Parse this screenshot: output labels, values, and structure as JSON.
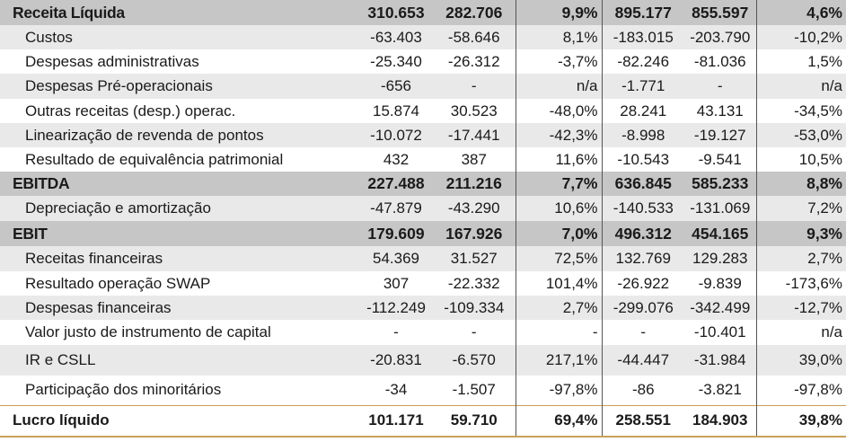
{
  "rows": [
    {
      "type": "head",
      "label": "Receita Líquida",
      "v": [
        "310.653",
        "282.706",
        "9,9%",
        "895.177",
        "855.597",
        "4,6%"
      ]
    },
    {
      "type": "even",
      "label": "Custos",
      "v": [
        "-63.403",
        "-58.646",
        "8,1%",
        "-183.015",
        "-203.790",
        "-10,2%"
      ]
    },
    {
      "type": "odd",
      "label": "Despesas administrativas",
      "v": [
        "-25.340",
        "-26.312",
        "-3,7%",
        "-82.246",
        "-81.036",
        "1,5%"
      ]
    },
    {
      "type": "even",
      "label": "Despesas Pré-operacionais",
      "v": [
        "-656",
        "-",
        "n/a",
        "-1.771",
        "-",
        "n/a"
      ]
    },
    {
      "type": "odd",
      "label": "Outras receitas (desp.) operac.",
      "v": [
        "15.874",
        "30.523",
        "-48,0%",
        "28.241",
        "43.131",
        "-34,5%"
      ]
    },
    {
      "type": "even",
      "label": "Linearização de revenda de pontos",
      "v": [
        "-10.072",
        "-17.441",
        "-42,3%",
        "-8.998",
        "-19.127",
        "-53,0%"
      ]
    },
    {
      "type": "odd",
      "label": "Resultado de equivalência patrimonial",
      "v": [
        "432",
        "387",
        "11,6%",
        "-10.543",
        "-9.541",
        "10,5%"
      ]
    },
    {
      "type": "head",
      "label": "EBITDA",
      "v": [
        "227.488",
        "211.216",
        "7,7%",
        "636.845",
        "585.233",
        "8,8%"
      ]
    },
    {
      "type": "even",
      "label": "Depreciação e amortização",
      "v": [
        "-47.879",
        "-43.290",
        "10,6%",
        "-140.533",
        "-131.069",
        "7,2%"
      ]
    },
    {
      "type": "head",
      "label": "EBIT",
      "v": [
        "179.609",
        "167.926",
        "7,0%",
        "496.312",
        "454.165",
        "9,3%"
      ]
    },
    {
      "type": "even",
      "label": "Receitas financeiras",
      "v": [
        "54.369",
        "31.527",
        "72,5%",
        "132.769",
        "129.283",
        "2,7%"
      ]
    },
    {
      "type": "odd",
      "label": "Resultado operação SWAP",
      "v": [
        "307",
        "-22.332",
        "101,4%",
        "-26.922",
        "-9.839",
        "-173,6%"
      ]
    },
    {
      "type": "even",
      "label": "Despesas financeiras",
      "v": [
        "-112.249",
        "-109.334",
        "2,7%",
        "-299.076",
        "-342.499",
        "-12,7%"
      ]
    },
    {
      "type": "odd",
      "label": "Valor justo de instrumento de capital",
      "v": [
        "-",
        "-",
        "-",
        "-",
        "-10.401",
        "n/a"
      ]
    },
    {
      "type": "even",
      "label": "IR e CSLL",
      "v": [
        "-20.831",
        "-6.570",
        "217,1%",
        "-44.447",
        "-31.984",
        "39,0%"
      ]
    },
    {
      "type": "odd",
      "label": "Participação dos minoritários",
      "v": [
        "-34",
        "-1.507",
        "-97,8%",
        "-86",
        "-3.821",
        "-97,8%"
      ]
    },
    {
      "type": "total",
      "label": "Lucro líquido",
      "v": [
        "101.171",
        "59.710",
        "69,4%",
        "258.551",
        "184.903",
        "39,8%"
      ]
    }
  ]
}
